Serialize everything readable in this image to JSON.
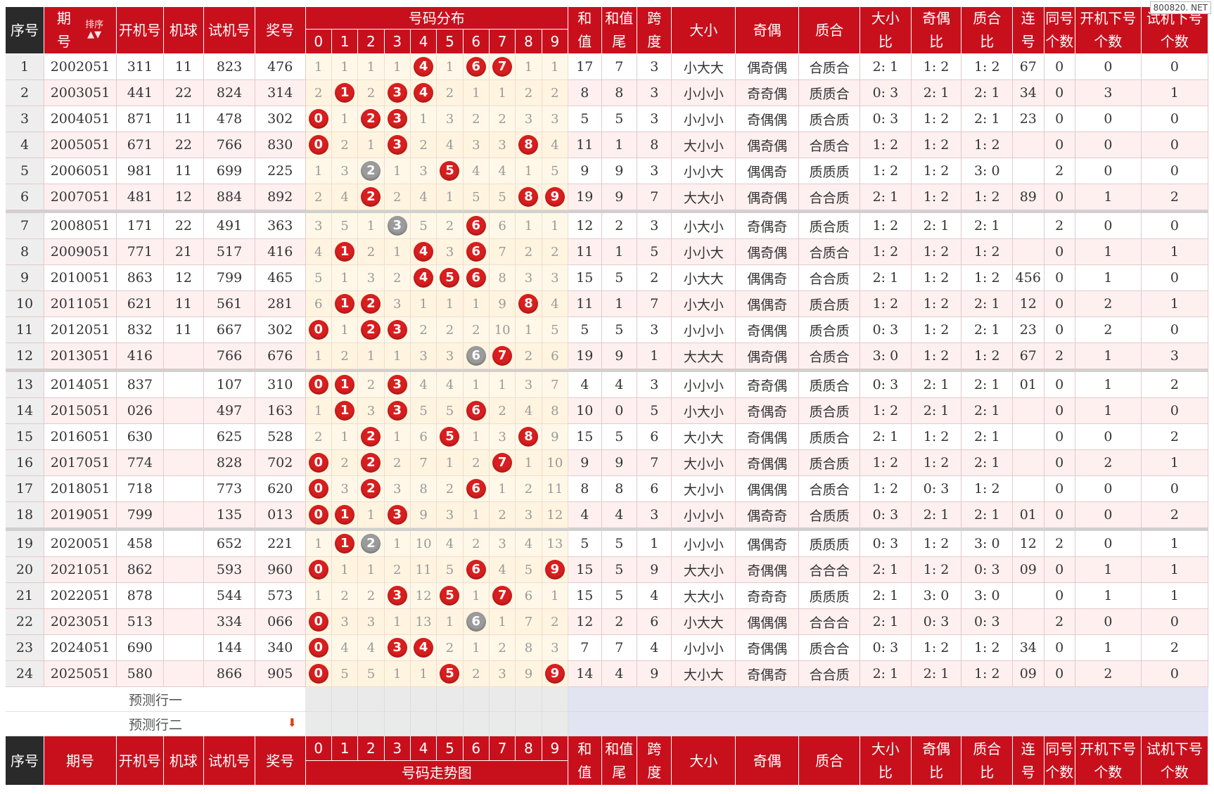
{
  "watermark": "800820. NET",
  "sort_label": "排序",
  "headers": {
    "seq": "序号",
    "period_top": "期",
    "period_bottom": "号",
    "period": "期号",
    "open": "开机号",
    "ball": "机球",
    "trial": "试机号",
    "prize": "奖号",
    "dist": "号码分布",
    "trend": "号码走势图",
    "sum_a": "和",
    "sum_b": "值",
    "tail_a": "和值",
    "tail_b": "尾",
    "span_a": "跨",
    "span_b": "度",
    "size": "大小",
    "oddeven": "奇偶",
    "prime": "质合",
    "size_ratio_a": "大小",
    "size_ratio_b": "比",
    "oe_ratio_a": "奇偶",
    "oe_ratio_b": "比",
    "pc_ratio_a": "质合",
    "pc_ratio_b": "比",
    "consec_a": "连",
    "consec_b": "号",
    "same_a": "同号",
    "same_b": "个数",
    "open_down_a": "开机下号",
    "open_down_b": "个数",
    "trial_down_a": "试机下号",
    "trial_down_b": "个数"
  },
  "digits": [
    "0",
    "1",
    "2",
    "3",
    "4",
    "5",
    "6",
    "7",
    "8",
    "9"
  ],
  "predict_rows": [
    "预测行一",
    "预测行二"
  ],
  "rows": [
    {
      "seq": "1",
      "period": "2002051",
      "open": "311",
      "ball": "11",
      "trial": "823",
      "prize": "476",
      "dist": [
        "1",
        "1",
        "1",
        "1",
        {
          "v": "4",
          "t": "r"
        },
        "1",
        {
          "v": "6",
          "t": "r"
        },
        {
          "v": "7",
          "t": "r"
        },
        "1",
        "1"
      ],
      "sum": "17",
      "tail": "7",
      "span": "3",
      "size": "小大大",
      "oe": "偶奇偶",
      "pc": "合质合",
      "sr": "2: 1",
      "oer": "1: 2",
      "pcr": "1: 2",
      "consec": "67",
      "same": "0",
      "opendown": "0",
      "trialdown": "0"
    },
    {
      "seq": "2",
      "period": "2003051",
      "open": "441",
      "ball": "22",
      "trial": "824",
      "prize": "314",
      "dist": [
        "2",
        {
          "v": "1",
          "t": "r"
        },
        "2",
        {
          "v": "3",
          "t": "r"
        },
        {
          "v": "4",
          "t": "r"
        },
        "2",
        "1",
        "1",
        "2",
        "2"
      ],
      "sum": "8",
      "tail": "8",
      "span": "3",
      "size": "小小小",
      "oe": "奇奇偶",
      "pc": "质质合",
      "sr": "0: 3",
      "oer": "2: 1",
      "pcr": "2: 1",
      "consec": "34",
      "same": "0",
      "opendown": "3",
      "trialdown": "1"
    },
    {
      "seq": "3",
      "period": "2004051",
      "open": "871",
      "ball": "11",
      "trial": "478",
      "prize": "302",
      "dist": [
        {
          "v": "0",
          "t": "r"
        },
        "1",
        {
          "v": "2",
          "t": "r"
        },
        {
          "v": "3",
          "t": "r"
        },
        "1",
        "3",
        "2",
        "2",
        "3",
        "3"
      ],
      "sum": "5",
      "tail": "5",
      "span": "3",
      "size": "小小小",
      "oe": "奇偶偶",
      "pc": "质合质",
      "sr": "0: 3",
      "oer": "1: 2",
      "pcr": "2: 1",
      "consec": "23",
      "same": "0",
      "opendown": "0",
      "trialdown": "0"
    },
    {
      "seq": "4",
      "period": "2005051",
      "open": "671",
      "ball": "22",
      "trial": "766",
      "prize": "830",
      "dist": [
        {
          "v": "0",
          "t": "r"
        },
        "2",
        "1",
        {
          "v": "3",
          "t": "r"
        },
        "2",
        "4",
        "3",
        "3",
        {
          "v": "8",
          "t": "r"
        },
        "4"
      ],
      "sum": "11",
      "tail": "1",
      "span": "8",
      "size": "大小小",
      "oe": "偶奇偶",
      "pc": "合质合",
      "sr": "1: 2",
      "oer": "1: 2",
      "pcr": "1: 2",
      "consec": "",
      "same": "0",
      "opendown": "0",
      "trialdown": "0"
    },
    {
      "seq": "5",
      "period": "2006051",
      "open": "981",
      "ball": "11",
      "trial": "699",
      "prize": "225",
      "dist": [
        "1",
        "3",
        {
          "v": "2",
          "t": "g"
        },
        "1",
        "3",
        {
          "v": "5",
          "t": "r"
        },
        "4",
        "4",
        "1",
        "5"
      ],
      "sum": "9",
      "tail": "9",
      "span": "3",
      "size": "小小大",
      "oe": "偶偶奇",
      "pc": "质质质",
      "sr": "1: 2",
      "oer": "1: 2",
      "pcr": "3: 0",
      "consec": "",
      "same": "2",
      "opendown": "0",
      "trialdown": "0"
    },
    {
      "seq": "6",
      "period": "2007051",
      "open": "481",
      "ball": "12",
      "trial": "884",
      "prize": "892",
      "dist": [
        "2",
        "4",
        {
          "v": "2",
          "t": "r"
        },
        "2",
        "4",
        "1",
        "5",
        "5",
        {
          "v": "8",
          "t": "r"
        },
        {
          "v": "9",
          "t": "r"
        }
      ],
      "sum": "19",
      "tail": "9",
      "span": "7",
      "size": "大大小",
      "oe": "偶奇偶",
      "pc": "合合质",
      "sr": "2: 1",
      "oer": "1: 2",
      "pcr": "1: 2",
      "consec": "89",
      "same": "0",
      "opendown": "1",
      "trialdown": "2"
    },
    {
      "seq": "7",
      "period": "2008051",
      "open": "171",
      "ball": "22",
      "trial": "491",
      "prize": "363",
      "dist": [
        "3",
        "5",
        "1",
        {
          "v": "3",
          "t": "g"
        },
        "5",
        "2",
        {
          "v": "6",
          "t": "r"
        },
        "6",
        "1",
        "1"
      ],
      "sum": "12",
      "tail": "2",
      "span": "3",
      "size": "小大小",
      "oe": "奇偶奇",
      "pc": "质合质",
      "sr": "1: 2",
      "oer": "2: 1",
      "pcr": "2: 1",
      "consec": "",
      "same": "2",
      "opendown": "0",
      "trialdown": "0"
    },
    {
      "seq": "8",
      "period": "2009051",
      "open": "771",
      "ball": "21",
      "trial": "517",
      "prize": "416",
      "dist": [
        "4",
        {
          "v": "1",
          "t": "r"
        },
        "2",
        "1",
        {
          "v": "4",
          "t": "r"
        },
        "3",
        {
          "v": "6",
          "t": "r"
        },
        "7",
        "2",
        "2"
      ],
      "sum": "11",
      "tail": "1",
      "span": "5",
      "size": "小小大",
      "oe": "偶奇偶",
      "pc": "合质合",
      "sr": "1: 2",
      "oer": "1: 2",
      "pcr": "1: 2",
      "consec": "",
      "same": "0",
      "opendown": "1",
      "trialdown": "1"
    },
    {
      "seq": "9",
      "period": "2010051",
      "open": "863",
      "ball": "12",
      "trial": "799",
      "prize": "465",
      "dist": [
        "5",
        "1",
        "3",
        "2",
        {
          "v": "4",
          "t": "r"
        },
        {
          "v": "5",
          "t": "r"
        },
        {
          "v": "6",
          "t": "r"
        },
        "8",
        "3",
        "3"
      ],
      "sum": "15",
      "tail": "5",
      "span": "2",
      "size": "小大大",
      "oe": "偶偶奇",
      "pc": "合合质",
      "sr": "2: 1",
      "oer": "1: 2",
      "pcr": "1: 2",
      "consec": "456",
      "same": "0",
      "opendown": "1",
      "trialdown": "0"
    },
    {
      "seq": "10",
      "period": "2011051",
      "open": "621",
      "ball": "11",
      "trial": "561",
      "prize": "281",
      "dist": [
        "6",
        {
          "v": "1",
          "t": "r"
        },
        {
          "v": "2",
          "t": "r"
        },
        "3",
        "1",
        "1",
        "1",
        "9",
        {
          "v": "8",
          "t": "r"
        },
        "4"
      ],
      "sum": "11",
      "tail": "1",
      "span": "7",
      "size": "小大小",
      "oe": "偶偶奇",
      "pc": "质合质",
      "sr": "1: 2",
      "oer": "1: 2",
      "pcr": "2: 1",
      "consec": "12",
      "same": "0",
      "opendown": "2",
      "trialdown": "1"
    },
    {
      "seq": "11",
      "period": "2012051",
      "open": "832",
      "ball": "11",
      "trial": "667",
      "prize": "302",
      "dist": [
        {
          "v": "0",
          "t": "r"
        },
        "1",
        {
          "v": "2",
          "t": "r"
        },
        {
          "v": "3",
          "t": "r"
        },
        "2",
        "2",
        "2",
        "10",
        "1",
        "5"
      ],
      "sum": "5",
      "tail": "5",
      "span": "3",
      "size": "小小小",
      "oe": "奇偶偶",
      "pc": "质合质",
      "sr": "0: 3",
      "oer": "1: 2",
      "pcr": "2: 1",
      "consec": "23",
      "same": "0",
      "opendown": "2",
      "trialdown": "0"
    },
    {
      "seq": "12",
      "period": "2013051",
      "open": "416",
      "ball": "",
      "trial": "766",
      "prize": "676",
      "dist": [
        "1",
        "2",
        "1",
        "1",
        "3",
        "3",
        {
          "v": "6",
          "t": "g"
        },
        {
          "v": "7",
          "t": "r"
        },
        "2",
        "6"
      ],
      "sum": "19",
      "tail": "9",
      "span": "1",
      "size": "大大大",
      "oe": "偶奇偶",
      "pc": "合质合",
      "sr": "3: 0",
      "oer": "1: 2",
      "pcr": "1: 2",
      "consec": "67",
      "same": "2",
      "opendown": "1",
      "trialdown": "3"
    },
    {
      "seq": "13",
      "period": "2014051",
      "open": "837",
      "ball": "",
      "trial": "107",
      "prize": "310",
      "dist": [
        {
          "v": "0",
          "t": "r"
        },
        {
          "v": "1",
          "t": "r"
        },
        "2",
        {
          "v": "3",
          "t": "r"
        },
        "4",
        "4",
        "1",
        "1",
        "3",
        "7"
      ],
      "sum": "4",
      "tail": "4",
      "span": "3",
      "size": "小小小",
      "oe": "奇奇偶",
      "pc": "质质合",
      "sr": "0: 3",
      "oer": "2: 1",
      "pcr": "2: 1",
      "consec": "01",
      "same": "0",
      "opendown": "1",
      "trialdown": "2"
    },
    {
      "seq": "14",
      "period": "2015051",
      "open": "026",
      "ball": "",
      "trial": "497",
      "prize": "163",
      "dist": [
        "1",
        {
          "v": "1",
          "t": "r"
        },
        "3",
        {
          "v": "3",
          "t": "r"
        },
        "5",
        "5",
        {
          "v": "6",
          "t": "r"
        },
        "2",
        "4",
        "8"
      ],
      "sum": "10",
      "tail": "0",
      "span": "5",
      "size": "小大小",
      "oe": "奇偶奇",
      "pc": "质合质",
      "sr": "1: 2",
      "oer": "2: 1",
      "pcr": "2: 1",
      "consec": "",
      "same": "0",
      "opendown": "1",
      "trialdown": "0"
    },
    {
      "seq": "15",
      "period": "2016051",
      "open": "630",
      "ball": "",
      "trial": "625",
      "prize": "528",
      "dist": [
        "2",
        "1",
        {
          "v": "2",
          "t": "r"
        },
        "1",
        "6",
        {
          "v": "5",
          "t": "r"
        },
        "1",
        "3",
        {
          "v": "8",
          "t": "r"
        },
        "9"
      ],
      "sum": "15",
      "tail": "5",
      "span": "6",
      "size": "大小大",
      "oe": "奇偶偶",
      "pc": "质质合",
      "sr": "2: 1",
      "oer": "1: 2",
      "pcr": "2: 1",
      "consec": "",
      "same": "0",
      "opendown": "0",
      "trialdown": "2"
    },
    {
      "seq": "16",
      "period": "2017051",
      "open": "774",
      "ball": "",
      "trial": "828",
      "prize": "702",
      "dist": [
        {
          "v": "0",
          "t": "r"
        },
        "2",
        {
          "v": "2",
          "t": "r"
        },
        "2",
        "7",
        "1",
        "2",
        {
          "v": "7",
          "t": "r"
        },
        "1",
        "10"
      ],
      "sum": "9",
      "tail": "9",
      "span": "7",
      "size": "大小小",
      "oe": "奇偶偶",
      "pc": "质合质",
      "sr": "1: 2",
      "oer": "1: 2",
      "pcr": "2: 1",
      "consec": "",
      "same": "0",
      "opendown": "2",
      "trialdown": "1"
    },
    {
      "seq": "17",
      "period": "2018051",
      "open": "718",
      "ball": "",
      "trial": "773",
      "prize": "620",
      "dist": [
        {
          "v": "0",
          "t": "r"
        },
        "3",
        {
          "v": "2",
          "t": "r"
        },
        "3",
        "8",
        "2",
        {
          "v": "6",
          "t": "r"
        },
        "1",
        "2",
        "11"
      ],
      "sum": "8",
      "tail": "8",
      "span": "6",
      "size": "大小小",
      "oe": "偶偶偶",
      "pc": "合质合",
      "sr": "1: 2",
      "oer": "0: 3",
      "pcr": "1: 2",
      "consec": "",
      "same": "0",
      "opendown": "0",
      "trialdown": "0"
    },
    {
      "seq": "18",
      "period": "2019051",
      "open": "799",
      "ball": "",
      "trial": "135",
      "prize": "013",
      "dist": [
        {
          "v": "0",
          "t": "r"
        },
        {
          "v": "1",
          "t": "r"
        },
        "1",
        {
          "v": "3",
          "t": "r"
        },
        "9",
        "3",
        "1",
        "2",
        "3",
        "12"
      ],
      "sum": "4",
      "tail": "4",
      "span": "3",
      "size": "小小小",
      "oe": "偶奇奇",
      "pc": "合质质",
      "sr": "0: 3",
      "oer": "2: 1",
      "pcr": "2: 1",
      "consec": "01",
      "same": "0",
      "opendown": "0",
      "trialdown": "2"
    },
    {
      "seq": "19",
      "period": "2020051",
      "open": "458",
      "ball": "",
      "trial": "652",
      "prize": "221",
      "dist": [
        "1",
        {
          "v": "1",
          "t": "r"
        },
        {
          "v": "2",
          "t": "g"
        },
        "1",
        "10",
        "4",
        "2",
        "3",
        "4",
        "13"
      ],
      "sum": "5",
      "tail": "5",
      "span": "1",
      "size": "小小小",
      "oe": "偶偶奇",
      "pc": "质质质",
      "sr": "0: 3",
      "oer": "1: 2",
      "pcr": "3: 0",
      "consec": "12",
      "same": "2",
      "opendown": "0",
      "trialdown": "1"
    },
    {
      "seq": "20",
      "period": "2021051",
      "open": "862",
      "ball": "",
      "trial": "593",
      "prize": "960",
      "dist": [
        {
          "v": "0",
          "t": "r"
        },
        "1",
        "1",
        "2",
        "11",
        "5",
        {
          "v": "6",
          "t": "r"
        },
        "4",
        "5",
        {
          "v": "9",
          "t": "r"
        }
      ],
      "sum": "15",
      "tail": "5",
      "span": "9",
      "size": "大大小",
      "oe": "奇偶偶",
      "pc": "合合合",
      "sr": "2: 1",
      "oer": "1: 2",
      "pcr": "0: 3",
      "consec": "09",
      "same": "0",
      "opendown": "1",
      "trialdown": "1"
    },
    {
      "seq": "21",
      "period": "2022051",
      "open": "878",
      "ball": "",
      "trial": "544",
      "prize": "573",
      "dist": [
        "1",
        "2",
        "2",
        {
          "v": "3",
          "t": "r"
        },
        "12",
        {
          "v": "5",
          "t": "r"
        },
        "1",
        {
          "v": "7",
          "t": "r"
        },
        "6",
        "1"
      ],
      "sum": "15",
      "tail": "5",
      "span": "4",
      "size": "大大小",
      "oe": "奇奇奇",
      "pc": "质质质",
      "sr": "2: 1",
      "oer": "3: 0",
      "pcr": "3: 0",
      "consec": "",
      "same": "0",
      "opendown": "1",
      "trialdown": "1"
    },
    {
      "seq": "22",
      "period": "2023051",
      "open": "513",
      "ball": "",
      "trial": "334",
      "prize": "066",
      "dist": [
        {
          "v": "0",
          "t": "r"
        },
        "3",
        "3",
        "1",
        "13",
        "1",
        {
          "v": "6",
          "t": "g"
        },
        "1",
        "7",
        "2"
      ],
      "sum": "12",
      "tail": "2",
      "span": "6",
      "size": "小大大",
      "oe": "偶偶偶",
      "pc": "合合合",
      "sr": "2: 1",
      "oer": "0: 3",
      "pcr": "0: 3",
      "consec": "",
      "same": "2",
      "opendown": "0",
      "trialdown": "0"
    },
    {
      "seq": "23",
      "period": "2024051",
      "open": "690",
      "ball": "",
      "trial": "144",
      "prize": "340",
      "dist": [
        {
          "v": "0",
          "t": "r"
        },
        "4",
        "4",
        {
          "v": "3",
          "t": "r"
        },
        {
          "v": "4",
          "t": "r"
        },
        "2",
        "1",
        "2",
        "8",
        "3"
      ],
      "sum": "7",
      "tail": "7",
      "span": "4",
      "size": "小小小",
      "oe": "奇偶偶",
      "pc": "质合合",
      "sr": "0: 3",
      "oer": "1: 2",
      "pcr": "1: 2",
      "consec": "34",
      "same": "0",
      "opendown": "1",
      "trialdown": "2"
    },
    {
      "seq": "24",
      "period": "2025051",
      "open": "580",
      "ball": "",
      "trial": "866",
      "prize": "905",
      "dist": [
        {
          "v": "0",
          "t": "r"
        },
        "5",
        "5",
        "1",
        "1",
        {
          "v": "5",
          "t": "r"
        },
        "2",
        "3",
        "9",
        {
          "v": "9",
          "t": "r"
        }
      ],
      "sum": "14",
      "tail": "4",
      "span": "9",
      "size": "大小大",
      "oe": "奇偶奇",
      "pc": "合合质",
      "sr": "2: 1",
      "oer": "2: 1",
      "pcr": "1: 2",
      "consec": "09",
      "same": "0",
      "opendown": "2",
      "trialdown": "0"
    }
  ]
}
